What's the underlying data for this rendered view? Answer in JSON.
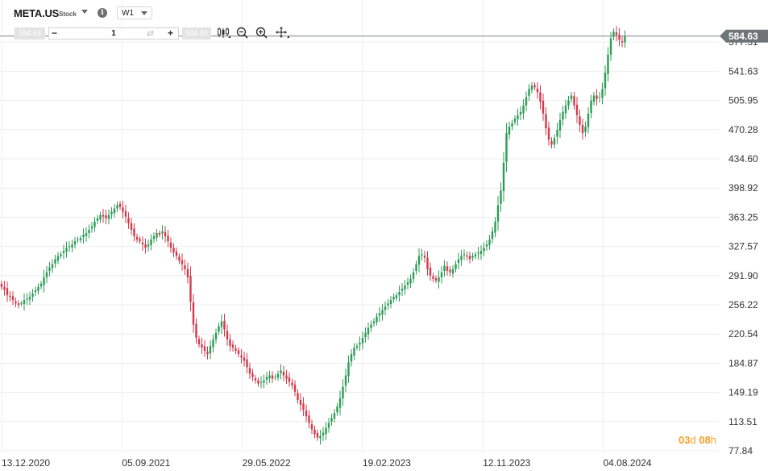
{
  "header": {
    "symbol": "META.US",
    "asset_type": "Stock",
    "timeframe": "W1",
    "sell_price": "584.63",
    "buy_price": "584.88",
    "quantity": "1"
  },
  "countdown": {
    "days": "03",
    "day_unit": "d",
    "hours": "08",
    "hour_unit": "h"
  },
  "colors": {
    "up": "#2c9c56",
    "down": "#d23a4c",
    "price_tag": "#6f7478",
    "countdown": "#f7a02a"
  },
  "icons": [
    "chevron-down-icon",
    "info-icon",
    "swap-icon",
    "candlestick-type-icon",
    "zoom-out-icon",
    "zoom-in-icon",
    "move-icon"
  ],
  "chart_data": {
    "type": "candlestick",
    "symbol": "META.US",
    "timeframe": "W1",
    "x_tick_labels": [
      "13.12.2020",
      "05.09.2021",
      "29.05.2022",
      "19.02.2023",
      "12.11.2023",
      "04.08.2024"
    ],
    "y_tick_labels": [
      "577.31",
      "541.63",
      "505.95",
      "470.28",
      "434.60",
      "398.92",
      "363.25",
      "327.57",
      "291.90",
      "256.22",
      "220.54",
      "184.87",
      "149.19",
      "113.51",
      "77.84"
    ],
    "ylim": [
      77.84,
      612.98
    ],
    "last_price": 584.63,
    "grid": true,
    "series_close": [
      278,
      275,
      268,
      266,
      262,
      258,
      256,
      258,
      262,
      264,
      266,
      270,
      274,
      278,
      282,
      290,
      296,
      302,
      306,
      312,
      316,
      318,
      322,
      326,
      328,
      330,
      334,
      336,
      338,
      342,
      344,
      348,
      352,
      358,
      362,
      366,
      364,
      362,
      366,
      370,
      374,
      378,
      376,
      370,
      364,
      356,
      348,
      340,
      336,
      334,
      330,
      326,
      330,
      336,
      340,
      344,
      342,
      346,
      340,
      334,
      326,
      320,
      316,
      310,
      306,
      300,
      290,
      260,
      232,
      216,
      208,
      204,
      200,
      196,
      206,
      214,
      222,
      230,
      236,
      226,
      214,
      206,
      204,
      200,
      196,
      192,
      188,
      180,
      172,
      168,
      164,
      160,
      162,
      164,
      168,
      170,
      166,
      168,
      172,
      176,
      170,
      166,
      162,
      158,
      150,
      140,
      134,
      128,
      120,
      112,
      104,
      98,
      94,
      96,
      100,
      106,
      112,
      118,
      124,
      132,
      142,
      156,
      170,
      186,
      196,
      204,
      206,
      210,
      216,
      222,
      228,
      232,
      236,
      242,
      246,
      250,
      254,
      258,
      262,
      266,
      268,
      272,
      276,
      280,
      284,
      288,
      296,
      306,
      316,
      318,
      314,
      300,
      292,
      288,
      286,
      290,
      296,
      304,
      298,
      296,
      300,
      306,
      312,
      316,
      318,
      316,
      312,
      316,
      318,
      320,
      322,
      326,
      330,
      336,
      346,
      358,
      378,
      396,
      430,
      466,
      474,
      478,
      484,
      488,
      492,
      500,
      510,
      520,
      524,
      522,
      516,
      504,
      490,
      472,
      458,
      452,
      460,
      470,
      482,
      492,
      500,
      506,
      512,
      500,
      488,
      476,
      466,
      474,
      490,
      506,
      512,
      508,
      510,
      520,
      540,
      562,
      582,
      590,
      586,
      580,
      577,
      585
    ]
  }
}
